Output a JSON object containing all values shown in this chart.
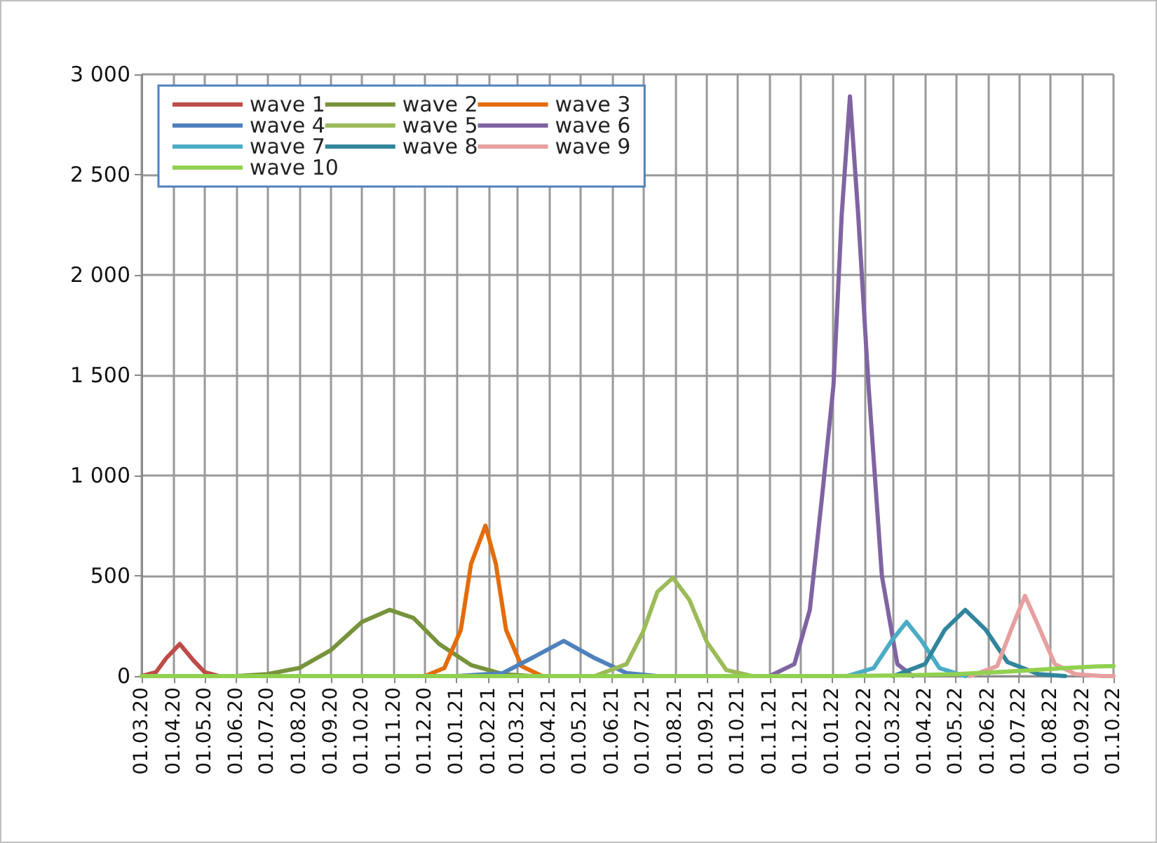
{
  "chart_data": {
    "type": "line",
    "xlim": [
      "2020-03-01",
      "2022-10-01"
    ],
    "xticks": [
      {
        "value": "2020-03-01",
        "label": "01.03.20"
      },
      {
        "value": "2020-04-01",
        "label": "01.04.20"
      },
      {
        "value": "2020-05-01",
        "label": "01.05.20"
      },
      {
        "value": "2020-06-01",
        "label": "01.06.20"
      },
      {
        "value": "2020-07-01",
        "label": "01.07.20"
      },
      {
        "value": "2020-08-01",
        "label": "01.08.20"
      },
      {
        "value": "2020-09-01",
        "label": "01.09.20"
      },
      {
        "value": "2020-10-01",
        "label": "01.10.20"
      },
      {
        "value": "2020-11-01",
        "label": "01.11.20"
      },
      {
        "value": "2020-12-01",
        "label": "01.12.20"
      },
      {
        "value": "2021-01-01",
        "label": "01.01.21"
      },
      {
        "value": "2021-02-01",
        "label": "01.02.21"
      },
      {
        "value": "2021-03-01",
        "label": "01.03.21"
      },
      {
        "value": "2021-04-01",
        "label": "01.04.21"
      },
      {
        "value": "2021-05-01",
        "label": "01.05.21"
      },
      {
        "value": "2021-06-01",
        "label": "01.06.21"
      },
      {
        "value": "2021-07-01",
        "label": "01.07.21"
      },
      {
        "value": "2021-08-01",
        "label": "01.08.21"
      },
      {
        "value": "2021-09-01",
        "label": "01.09.21"
      },
      {
        "value": "2021-10-01",
        "label": "01.10.21"
      },
      {
        "value": "2021-11-01",
        "label": "01.11.21"
      },
      {
        "value": "2021-12-01",
        "label": "01.12.21"
      },
      {
        "value": "2022-01-01",
        "label": "01.01.22"
      },
      {
        "value": "2022-02-01",
        "label": "01.02.22"
      },
      {
        "value": "2022-03-01",
        "label": "01.03.22"
      },
      {
        "value": "2022-04-01",
        "label": "01.04.22"
      },
      {
        "value": "2022-05-01",
        "label": "01.05.22"
      },
      {
        "value": "2022-06-01",
        "label": "01.06.22"
      },
      {
        "value": "2022-07-01",
        "label": "01.07.22"
      },
      {
        "value": "2022-08-01",
        "label": "01.08.22"
      },
      {
        "value": "2022-09-01",
        "label": "01.09.22"
      },
      {
        "value": "2022-10-01",
        "label": "01.10.22"
      }
    ],
    "ylim": [
      0,
      3000
    ],
    "yticks": [
      0,
      500,
      {
        "value": 1000,
        "label": "1 000"
      },
      {
        "value": 1500,
        "label": "1 500"
      },
      {
        "value": 2000,
        "label": "2 000"
      },
      {
        "value": 2500,
        "label": "2 500"
      },
      {
        "value": 3000,
        "label": "3 000"
      }
    ],
    "grid": true,
    "legend": "top left",
    "marker": "none",
    "line_style": "solid",
    "series": [
      {
        "name": "wave 1",
        "color": "#be4b48",
        "x": [
          "2020-03-01",
          "2020-03-15",
          "2020-03-25",
          "2020-04-07",
          "2020-04-20",
          "2020-05-01",
          "2020-05-15"
        ],
        "values": [
          0,
          20,
          90,
          160,
          80,
          20,
          0
        ]
      },
      {
        "name": "wave 2",
        "color": "#77933c",
        "x": [
          "2020-06-01",
          "2020-07-01",
          "2020-08-01",
          "2020-09-01",
          "2020-10-01",
          "2020-10-28",
          "2020-11-20",
          "2020-12-15",
          "2021-01-15",
          "2021-02-15",
          "2021-03-15"
        ],
        "values": [
          0,
          10,
          40,
          130,
          270,
          330,
          290,
          160,
          55,
          10,
          0
        ]
      },
      {
        "name": "wave 3",
        "color": "#e46c0a",
        "x": [
          "2020-12-01",
          "2020-12-20",
          "2021-01-05",
          "2021-01-15",
          "2021-01-29",
          "2021-02-08",
          "2021-02-18",
          "2021-03-05",
          "2021-03-25"
        ],
        "values": [
          0,
          40,
          230,
          560,
          750,
          560,
          230,
          50,
          0
        ]
      },
      {
        "name": "wave 4",
        "color": "#4f81bd",
        "x": [
          "2021-01-01",
          "2021-02-15",
          "2021-03-15",
          "2021-04-15",
          "2021-05-15",
          "2021-06-15",
          "2021-07-15"
        ],
        "values": [
          0,
          15,
          90,
          175,
          90,
          15,
          0
        ]
      },
      {
        "name": "wave 5",
        "color": "#9bbb59",
        "x": [
          "2021-05-15",
          "2021-06-15",
          "2021-07-01",
          "2021-07-15",
          "2021-07-30",
          "2021-08-15",
          "2021-09-01",
          "2021-09-20",
          "2021-10-15"
        ],
        "values": [
          0,
          60,
          220,
          420,
          490,
          380,
          170,
          30,
          0
        ]
      },
      {
        "name": "wave 6",
        "color": "#8064a2",
        "x": [
          "2021-11-01",
          "2021-11-25",
          "2021-12-10",
          "2021-12-22",
          "2022-01-02",
          "2022-01-10",
          "2022-01-18",
          "2022-01-26",
          "2022-02-05",
          "2022-02-18",
          "2022-03-05",
          "2022-03-20"
        ],
        "values": [
          0,
          60,
          330,
          900,
          1450,
          2300,
          2890,
          2300,
          1450,
          500,
          60,
          0
        ]
      },
      {
        "name": "wave 7",
        "color": "#4bacc6",
        "x": [
          "2022-01-15",
          "2022-02-10",
          "2022-02-28",
          "2022-03-14",
          "2022-03-28",
          "2022-04-15",
          "2022-05-10"
        ],
        "values": [
          0,
          40,
          180,
          270,
          180,
          40,
          0
        ]
      },
      {
        "name": "wave 8",
        "color": "#31859c",
        "x": [
          "2022-03-01",
          "2022-04-01",
          "2022-04-20",
          "2022-05-10",
          "2022-05-30",
          "2022-06-20",
          "2022-07-20",
          "2022-08-15"
        ],
        "values": [
          0,
          60,
          230,
          330,
          230,
          70,
          10,
          0
        ]
      },
      {
        "name": "wave 9",
        "color": "#e6a09f",
        "x": [
          "2022-05-15",
          "2022-06-10",
          "2022-06-25",
          "2022-07-07",
          "2022-07-20",
          "2022-08-05",
          "2022-08-25",
          "2022-09-20",
          "2022-10-01"
        ],
        "values": [
          0,
          50,
          250,
          400,
          250,
          60,
          10,
          0,
          0
        ]
      },
      {
        "name": "wave 10",
        "color": "#92d050",
        "x": [
          "2020-03-01",
          "2022-01-01",
          "2022-03-01",
          "2022-05-01",
          "2022-07-01",
          "2022-08-15",
          "2022-09-15",
          "2022-10-01"
        ],
        "values": [
          0,
          0,
          3,
          10,
          25,
          40,
          48,
          50
        ]
      }
    ]
  }
}
